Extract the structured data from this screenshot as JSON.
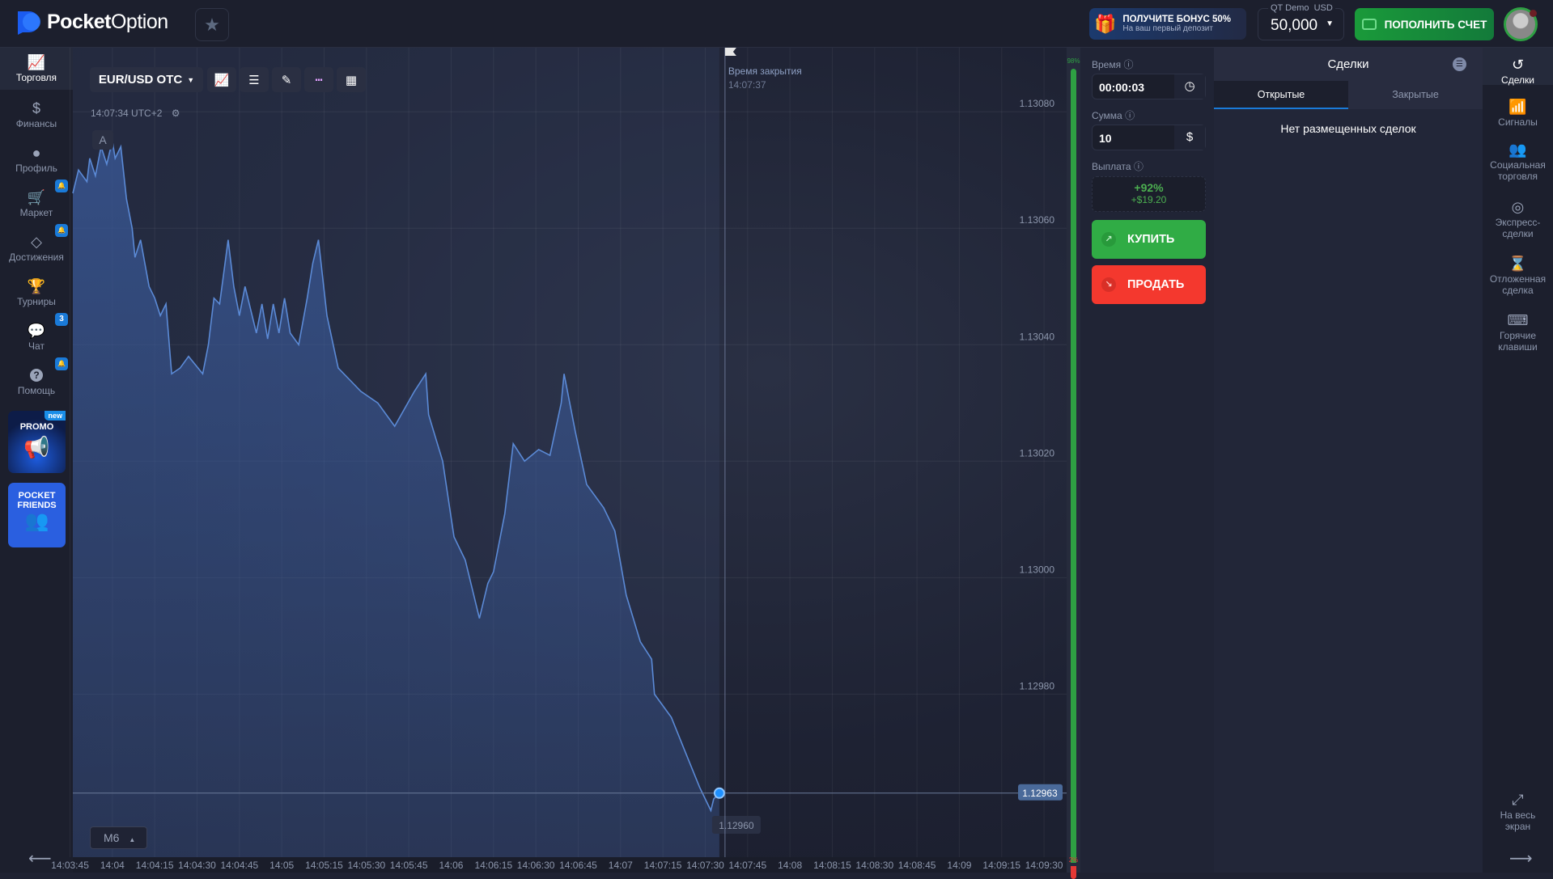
{
  "header": {
    "logo": {
      "bold": "Pocket",
      "light": "Option"
    },
    "favorites_icon": "star-icon",
    "bonus": {
      "title": "ПОЛУЧИТЕ БОНУС 50%",
      "subtitle": "На ваш первый депозит"
    },
    "account": {
      "type": "QT Demo",
      "currency": "USD",
      "balance": "50,000"
    },
    "deposit_label": "ПОПОЛНИТЬ СЧЕТ"
  },
  "left_nav": {
    "items": [
      {
        "label": "Торговля",
        "icon": "chart-icon",
        "active": true
      },
      {
        "label": "Финансы",
        "icon": "dollar-icon"
      },
      {
        "label": "Профиль",
        "icon": "user-icon"
      },
      {
        "label": "Маркет",
        "icon": "cart-icon",
        "badge": "bell"
      },
      {
        "label": "Достижения",
        "icon": "diamond-icon",
        "badge": "bell"
      },
      {
        "label": "Турниры",
        "icon": "trophy-icon"
      },
      {
        "label": "Чат",
        "icon": "chat-icon",
        "badge": "3"
      },
      {
        "label": "Помощь",
        "icon": "help-icon",
        "badge": "bell"
      }
    ],
    "promo": {
      "label": "PROMO",
      "tag": "new"
    },
    "friends": {
      "label": "POCKET FRIENDS"
    }
  },
  "toolbar": {
    "pair": "EUR/USD OTC",
    "time_info": "14:07:34 UTC+2",
    "marker": "A",
    "timeframe": "M6"
  },
  "chart_data": {
    "type": "area",
    "series": [
      {
        "points": [
          [
            "14:03:46",
            1.13066
          ],
          [
            "14:03:48",
            1.1307
          ],
          [
            "14:03:51",
            1.13068
          ],
          [
            "14:03:52",
            1.13072
          ],
          [
            "14:03:54",
            1.13069
          ],
          [
            "14:03:56",
            1.13074
          ],
          [
            "14:03:58",
            1.13071
          ],
          [
            "14:04:00",
            1.13075
          ],
          [
            "14:04:01",
            1.13072
          ],
          [
            "14:04:03",
            1.13074
          ],
          [
            "14:04:05",
            1.13065
          ],
          [
            "14:04:07",
            1.1306
          ],
          [
            "14:04:08",
            1.13055
          ],
          [
            "14:04:10",
            1.13058
          ],
          [
            "14:04:13",
            1.1305
          ],
          [
            "14:04:15",
            1.13048
          ],
          [
            "14:04:17",
            1.13045
          ],
          [
            "14:04:19",
            1.13047
          ],
          [
            "14:04:21",
            1.13035
          ],
          [
            "14:04:24",
            1.13036
          ],
          [
            "14:04:27",
            1.13038
          ],
          [
            "14:04:32",
            1.13035
          ],
          [
            "14:04:34",
            1.1304
          ],
          [
            "14:04:36",
            1.13048
          ],
          [
            "14:04:38",
            1.13047
          ],
          [
            "14:04:41",
            1.13058
          ],
          [
            "14:04:43",
            1.1305
          ],
          [
            "14:04:45",
            1.13045
          ],
          [
            "14:04:47",
            1.1305
          ],
          [
            "14:04:51",
            1.13042
          ],
          [
            "14:04:53",
            1.13047
          ],
          [
            "14:04:55",
            1.13041
          ],
          [
            "14:04:57",
            1.13047
          ],
          [
            "14:04:59",
            1.13042
          ],
          [
            "14:05:01",
            1.13048
          ],
          [
            "14:05:03",
            1.13042
          ],
          [
            "14:05:06",
            1.1304
          ],
          [
            "14:05:09",
            1.13048
          ],
          [
            "14:05:11",
            1.13054
          ],
          [
            "14:05:13",
            1.13058
          ],
          [
            "14:05:16",
            1.13045
          ],
          [
            "14:05:20",
            1.13036
          ],
          [
            "14:05:24",
            1.13034
          ],
          [
            "14:05:28",
            1.13032
          ],
          [
            "14:05:34",
            1.1303
          ],
          [
            "14:05:40",
            1.13026
          ],
          [
            "14:05:47",
            1.13032
          ],
          [
            "14:05:51",
            1.13035
          ],
          [
            "14:05:52",
            1.13028
          ],
          [
            "14:05:57",
            1.1302
          ],
          [
            "14:06:01",
            1.13007
          ],
          [
            "14:06:05",
            1.13003
          ],
          [
            "14:06:10",
            1.12993
          ],
          [
            "14:06:13",
            1.12999
          ],
          [
            "14:06:15",
            1.13001
          ],
          [
            "14:06:19",
            1.13011
          ],
          [
            "14:06:22",
            1.13023
          ],
          [
            "14:06:26",
            1.1302
          ],
          [
            "14:06:31",
            1.13022
          ],
          [
            "14:06:35",
            1.13021
          ],
          [
            "14:06:39",
            1.1303
          ],
          [
            "14:06:40",
            1.13035
          ],
          [
            "14:06:44",
            1.13025
          ],
          [
            "14:06:48",
            1.13016
          ],
          [
            "14:06:54",
            1.13012
          ],
          [
            "14:06:58",
            1.13008
          ],
          [
            "14:07:02",
            1.12997
          ],
          [
            "14:07:07",
            1.12989
          ],
          [
            "14:07:11",
            1.12986
          ],
          [
            "14:07:12",
            1.1298
          ],
          [
            "14:07:18",
            1.12976
          ],
          [
            "14:07:23",
            1.1297
          ],
          [
            "14:07:28",
            1.12964
          ],
          [
            "14:07:32",
            1.1296
          ],
          [
            "14:07:33",
            1.12962
          ],
          [
            "14:07:35",
            1.12963
          ]
        ]
      }
    ],
    "xlim": [
      "14:03:46",
      "14:09:38"
    ],
    "ylim": [
      1.12952,
      1.13091
    ],
    "x_ticks": [
      "14:03:45",
      "14:04",
      "14:04:15",
      "14:04:30",
      "14:04:45",
      "14:05",
      "14:05:15",
      "14:05:30",
      "14:05:45",
      "14:06",
      "14:06:15",
      "14:06:30",
      "14:06:45",
      "14:07",
      "14:07:15",
      "14:07:30",
      "14:07:45",
      "14:08",
      "14:08:15",
      "14:08:30",
      "14:08:45",
      "14:09",
      "14:09:15",
      "14:09:30"
    ],
    "y_ticks": [
      "1.13080",
      "1.13060",
      "1.13040",
      "1.13020",
      "1.13000",
      "1.12980"
    ],
    "current_price": "1.12963",
    "hover_price": "1.12960",
    "close_time": {
      "label": "Время закрытия",
      "time": "14:07:37"
    },
    "grid": true,
    "colors": {
      "line": "#5b8ad6",
      "fill": "#3a5a9a",
      "current_marker": "#1e90ff"
    }
  },
  "sentiment": {
    "up": "98%",
    "down": "2%",
    "up_value": 98
  },
  "trade": {
    "time_label": "Время",
    "time_value": "00:00:03",
    "amount_label": "Сумма",
    "amount_value": "10",
    "payout_label": "Выплата",
    "payout_percent": "+92%",
    "payout_amount": "+$19.20",
    "buy_label": "КУПИТЬ",
    "sell_label": "ПРОДАТЬ"
  },
  "deals": {
    "title": "Сделки",
    "tabs": [
      "Открытые",
      "Закрытые"
    ],
    "empty": "Нет размещенных сделок"
  },
  "right_nav": {
    "items": [
      {
        "label": "Сделки",
        "icon": "history-icon",
        "active": true
      },
      {
        "label": "Сигналы",
        "icon": "signal-icon"
      },
      {
        "label": "Социальная торговля",
        "icon": "users-icon"
      },
      {
        "label": "Экспресс-сделки",
        "icon": "target-icon"
      },
      {
        "label": "Отложенная сделка",
        "icon": "hourglass-icon"
      },
      {
        "label": "Горячие клавиши",
        "icon": "keyboard-icon"
      }
    ],
    "fullscreen": "На весь экран"
  }
}
